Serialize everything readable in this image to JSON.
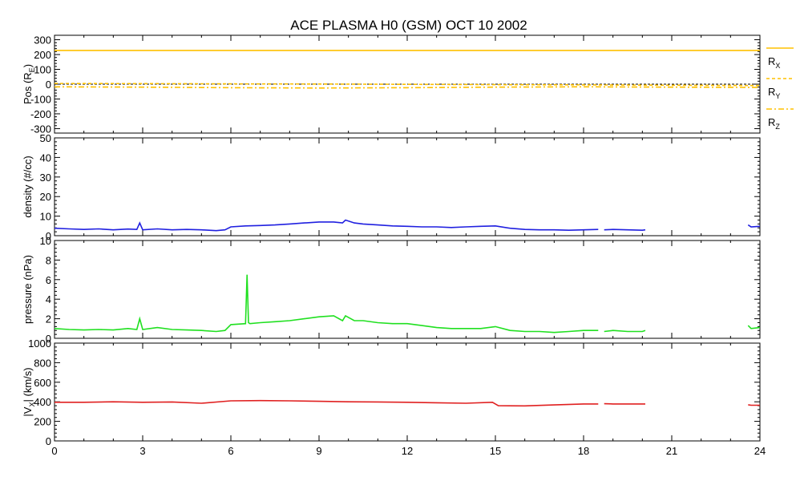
{
  "title": "ACE PLASMA H0 (GSM)    OCT 10 2002",
  "x_ticks": [
    "0",
    "3",
    "6",
    "9",
    "12",
    "15",
    "18",
    "21",
    "24"
  ],
  "chart_data": [
    {
      "type": "line",
      "panel": "position",
      "ylabel": "Pos (R",
      "ylabel_sub": "E",
      "ylabel_tail": ")",
      "ylim": [
        -330,
        330
      ],
      "yticks": [
        -300,
        -200,
        -100,
        0,
        100,
        200,
        300
      ],
      "xlim": [
        0,
        24
      ],
      "legend_placement": "right",
      "series": [
        {
          "name": "R",
          "name_sub": "X",
          "color": "#ffc000",
          "dash": "solid",
          "x": [
            0,
            24
          ],
          "y": [
            228,
            228
          ]
        },
        {
          "name": "R",
          "name_sub": "Y",
          "color": "#ffc000",
          "dash": "dashed",
          "x": [
            0,
            3,
            6,
            9,
            12,
            15,
            18,
            21,
            24
          ],
          "y": [
            5,
            4,
            2,
            1,
            -1,
            -3,
            -5,
            -7,
            -9
          ]
        },
        {
          "name": "R",
          "name_sub": "Z",
          "color": "#ffc000",
          "dash": "dashdot",
          "x": [
            0,
            3,
            6,
            9,
            12,
            15,
            18,
            21,
            24
          ],
          "y": [
            -18,
            -20,
            -24,
            -26,
            -24,
            -20,
            -18,
            -20,
            -22
          ]
        }
      ],
      "reference_line": {
        "y": 0,
        "color": "#000000",
        "dash": "dashed"
      }
    },
    {
      "type": "line",
      "panel": "density",
      "ylabel": "density (#/cc)",
      "ylim": [
        0,
        50
      ],
      "yticks": [
        0,
        10,
        20,
        30,
        40,
        50
      ],
      "xlim": [
        0,
        24
      ],
      "color": "#2020e0",
      "series": [
        {
          "x": [
            0,
            0.5,
            1,
            1.5,
            2,
            2.5,
            2.8,
            2.9,
            3.0,
            3.5,
            4,
            4.5,
            5,
            5.5,
            5.8,
            6,
            6.5,
            7,
            7.5,
            8,
            8.5,
            9,
            9.5,
            9.8,
            9.9,
            10.2,
            10.5,
            11,
            11.5,
            12,
            12.5,
            13,
            13.5,
            14,
            14.5,
            15,
            15.5,
            16,
            16.5,
            17,
            17.5,
            18,
            18.5
          ],
          "y": [
            3.8,
            3.5,
            3.2,
            3.5,
            3.0,
            3.4,
            3.2,
            6.5,
            3.0,
            3.5,
            3.0,
            3.2,
            3.0,
            2.6,
            3.0,
            4.5,
            5.0,
            5.2,
            5.5,
            6.0,
            6.5,
            7.0,
            7.0,
            6.5,
            8.0,
            6.5,
            6.0,
            5.5,
            5.0,
            4.8,
            4.5,
            4.5,
            4.2,
            4.5,
            4.8,
            5.0,
            3.8,
            3.2,
            3.0,
            3.0,
            2.8,
            3.0,
            3.2
          ]
        },
        {
          "x": [
            18.7,
            19,
            19.5,
            20,
            20.1
          ],
          "y": [
            3.0,
            3.2,
            3.0,
            2.8,
            3.0
          ]
        },
        {
          "x": [
            23.6,
            23.7,
            24
          ],
          "y": [
            5.5,
            4.5,
            4.8
          ]
        }
      ]
    },
    {
      "type": "line",
      "panel": "pressure",
      "ylabel": "pressure (nPa)",
      "ylim": [
        0,
        10
      ],
      "yticks": [
        0,
        2,
        4,
        6,
        8,
        10
      ],
      "xlim": [
        0,
        24
      ],
      "color": "#20e020",
      "series": [
        {
          "x": [
            0,
            0.5,
            1,
            1.5,
            2,
            2.5,
            2.8,
            2.9,
            3.0,
            3.5,
            4,
            4.5,
            5,
            5.5,
            5.8,
            6,
            6.5,
            6.55,
            6.6,
            6.65,
            7,
            7.5,
            8,
            8.5,
            9,
            9.5,
            9.8,
            9.9,
            10.2,
            10.5,
            11,
            11.5,
            12,
            12.5,
            13,
            13.5,
            14,
            14.5,
            15,
            15.5,
            16,
            16.5,
            17,
            17.5,
            18,
            18.5
          ],
          "y": [
            1.0,
            0.9,
            0.85,
            0.9,
            0.85,
            1.0,
            0.9,
            2.0,
            0.9,
            1.1,
            0.9,
            0.85,
            0.8,
            0.7,
            0.8,
            1.4,
            1.5,
            6.5,
            1.6,
            1.5,
            1.6,
            1.7,
            1.8,
            2.0,
            2.2,
            2.3,
            1.8,
            2.3,
            1.8,
            1.8,
            1.6,
            1.5,
            1.5,
            1.3,
            1.1,
            1.0,
            1.0,
            1.0,
            1.2,
            0.8,
            0.7,
            0.7,
            0.6,
            0.7,
            0.8,
            0.8
          ]
        },
        {
          "x": [
            18.7,
            19,
            19.5,
            20,
            20.1
          ],
          "y": [
            0.7,
            0.8,
            0.7,
            0.7,
            0.8
          ]
        },
        {
          "x": [
            23.6,
            23.7,
            24
          ],
          "y": [
            1.3,
            1.0,
            1.1
          ]
        }
      ]
    },
    {
      "type": "line",
      "panel": "velocity",
      "ylabel": "|V",
      "ylabel_sub": "X",
      "ylabel_tail": "| (km/s)",
      "ylim": [
        0,
        1000
      ],
      "yticks": [
        0,
        200,
        400,
        600,
        800,
        1000
      ],
      "xlim": [
        0,
        24
      ],
      "color": "#e02020",
      "series": [
        {
          "x": [
            0,
            1,
            2,
            3,
            4,
            5,
            6,
            7,
            8,
            9,
            10,
            11,
            12,
            13,
            14,
            14.9,
            15.1,
            16,
            17,
            18,
            18.5
          ],
          "y": [
            395,
            395,
            400,
            395,
            398,
            385,
            410,
            412,
            410,
            405,
            400,
            398,
            395,
            390,
            385,
            395,
            360,
            358,
            368,
            378,
            378
          ]
        },
        {
          "x": [
            18.7,
            19,
            19.5,
            20,
            20.1
          ],
          "y": [
            380,
            378,
            378,
            378,
            378
          ]
        },
        {
          "x": [
            23.6,
            23.7,
            24
          ],
          "y": [
            370,
            365,
            365
          ]
        }
      ]
    }
  ]
}
